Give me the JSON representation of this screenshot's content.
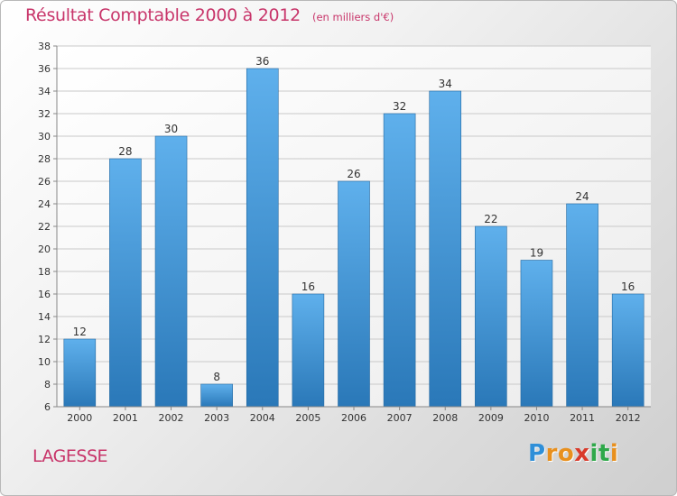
{
  "header": {
    "title": "Résultat Comptable 2000 à 2012",
    "subtitle": "(en milliers d'€)"
  },
  "footer": {
    "commune": "LAGESSE",
    "brand": "Proxiti"
  },
  "colors": {
    "title": "#c8356a",
    "bar_top": "#5fb0ec",
    "bar_bottom": "#2a78b8",
    "brand_letters": [
      "#2f8fd8",
      "#e8901e",
      "#e8901e",
      "#d93a2b",
      "#2fa84a",
      "#2fa84a",
      "#e8901e"
    ]
  },
  "chart_data": {
    "type": "bar",
    "title": "Résultat Comptable 2000 à 2012",
    "subtitle": "(en milliers d'€)",
    "categories": [
      "2000",
      "2001",
      "2002",
      "2003",
      "2004",
      "2005",
      "2006",
      "2007",
      "2008",
      "2009",
      "2010",
      "2011",
      "2012"
    ],
    "values": [
      12,
      28,
      30,
      8,
      36,
      16,
      26,
      32,
      34,
      22,
      19,
      24,
      16
    ],
    "xlabel": "",
    "ylabel": "",
    "ylim": [
      6,
      38
    ],
    "yticks": [
      6,
      8,
      10,
      12,
      14,
      16,
      18,
      20,
      22,
      24,
      26,
      28,
      30,
      32,
      34,
      36,
      38
    ],
    "grid": true,
    "legend": "none"
  }
}
